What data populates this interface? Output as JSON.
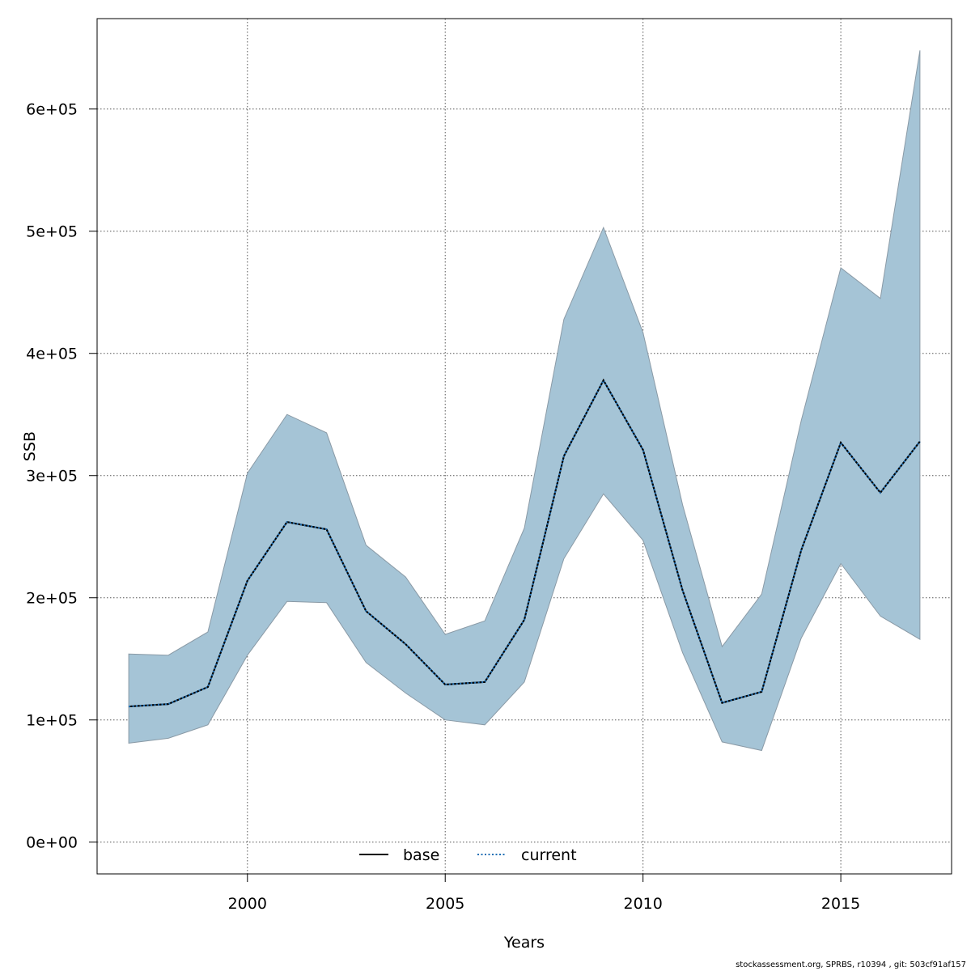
{
  "chart_data": {
    "type": "line",
    "xlabel": "Years",
    "ylabel": "SSB",
    "xlim": [
      1996.2,
      2017.8
    ],
    "ylim": [
      -26000,
      674000
    ],
    "x_ticks": [
      2000,
      2005,
      2010,
      2015
    ],
    "x_tick_labels": [
      "2000",
      "2005",
      "2010",
      "2015"
    ],
    "y_ticks": [
      0,
      100000,
      200000,
      300000,
      400000,
      500000,
      600000
    ],
    "y_tick_labels": [
      "0e+00",
      "1e+05",
      "2e+05",
      "3e+05",
      "4e+05",
      "5e+05",
      "6e+05"
    ],
    "grid": true,
    "legend_position": "bottom-center",
    "x": [
      1997,
      1998,
      1999,
      2000,
      2001,
      2002,
      2003,
      2004,
      2005,
      2006,
      2007,
      2008,
      2009,
      2010,
      2011,
      2012,
      2013,
      2014,
      2015,
      2016,
      2017
    ],
    "band": {
      "fill_color": "#a5c4d6",
      "edge_color": "#8a9aa6",
      "upper": [
        154000,
        153000,
        172000,
        302000,
        350000,
        335000,
        243000,
        217000,
        170000,
        181000,
        257000,
        428000,
        503000,
        417000,
        276000,
        160000,
        203000,
        345000,
        470000,
        445000,
        648000
      ],
      "lower": [
        81000,
        85000,
        96000,
        153000,
        197000,
        196000,
        147000,
        122000,
        100000,
        96000,
        131000,
        232000,
        285000,
        247000,
        155000,
        82000,
        75000,
        167000,
        228000,
        185000,
        166000
      ]
    },
    "series": [
      {
        "name": "base",
        "color": "#000000",
        "line_style": "solid",
        "values": [
          111000,
          113000,
          127000,
          214000,
          262000,
          256000,
          189000,
          162000,
          129000,
          131000,
          182000,
          316000,
          378000,
          321000,
          206000,
          114000,
          123000,
          239000,
          327000,
          286000,
          328000
        ]
      },
      {
        "name": "current",
        "color": "#1f6fb4",
        "line_style": "dotted",
        "values": [
          111000,
          113000,
          127000,
          214000,
          262000,
          256000,
          189000,
          162000,
          129000,
          131000,
          182000,
          316000,
          378000,
          321000,
          206000,
          114000,
          123000,
          239000,
          327000,
          286000,
          328000
        ]
      }
    ]
  },
  "footer": "stockassessment.org, SPRBS, r10394 , git: 503cf91af157"
}
